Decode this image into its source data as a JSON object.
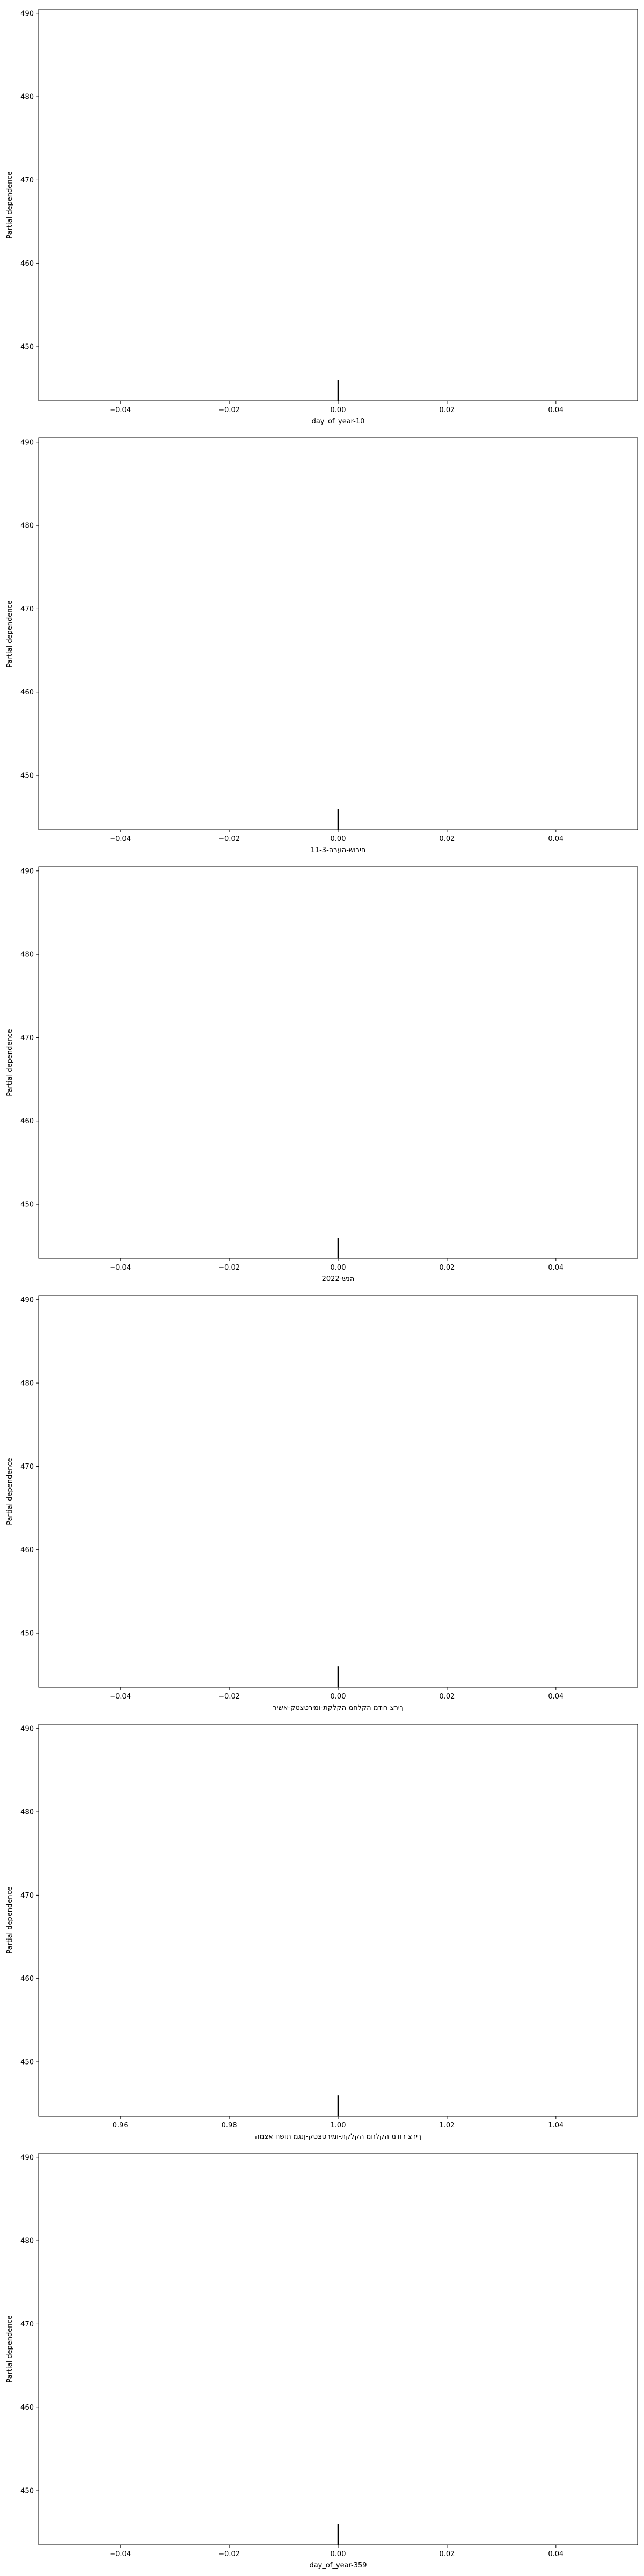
{
  "chart_data": [
    {
      "type": "line",
      "xlabel": "day_of_year-10",
      "ylabel": "Partial dependence",
      "xlim": [
        -0.055,
        0.055
      ],
      "ylim": [
        443.5,
        490.5
      ],
      "xticks": [
        -0.04,
        -0.02,
        0.0,
        0.02,
        0.04
      ],
      "xtick_labels": [
        "−0.04",
        "−0.02",
        "0.00",
        "0.02",
        "0.04"
      ],
      "yticks": [
        450,
        460,
        470,
        480,
        490
      ],
      "ytick_labels": [
        "450",
        "460",
        "470",
        "480",
        "490"
      ],
      "rug": [
        {
          "x": 0.0,
          "y0": 443.5,
          "y1": 446.0
        }
      ],
      "series": [],
      "grid": false
    },
    {
      "type": "line",
      "xlabel": "חירוש-הערה-11-3",
      "ylabel": "Partial dependence",
      "xlim": [
        -0.055,
        0.055
      ],
      "ylim": [
        443.5,
        490.5
      ],
      "xticks": [
        -0.04,
        -0.02,
        0.0,
        0.02,
        0.04
      ],
      "xtick_labels": [
        "−0.04",
        "−0.02",
        "0.00",
        "0.02",
        "0.04"
      ],
      "yticks": [
        450,
        460,
        470,
        480,
        490
      ],
      "ytick_labels": [
        "450",
        "460",
        "470",
        "480",
        "490"
      ],
      "rug": [
        {
          "x": 0.0,
          "y0": 443.5,
          "y1": 446.0
        }
      ],
      "series": [],
      "grid": false
    },
    {
      "type": "line",
      "xlabel": "הנש-2022",
      "ylabel": "Partial dependence",
      "xlim": [
        -0.055,
        0.055
      ],
      "ylim": [
        443.5,
        490.5
      ],
      "xticks": [
        -0.04,
        -0.02,
        0.0,
        0.02,
        0.04
      ],
      "xtick_labels": [
        "−0.04",
        "−0.02",
        "0.00",
        "0.02",
        "0.04"
      ],
      "yticks": [
        450,
        460,
        470,
        480,
        490
      ],
      "ytick_labels": [
        "450",
        "460",
        "470",
        "480",
        "490"
      ],
      "rug": [
        {
          "x": 0.0,
          "y0": 443.5,
          "y1": 446.0
        }
      ],
      "series": [],
      "grid": false
    },
    {
      "type": "line",
      "xlabel": "ךירצ רודמ הקלחמ הקלקת-ומירטצטק-אשיר",
      "ylabel": "Partial dependence",
      "xlim": [
        -0.055,
        0.055
      ],
      "ylim": [
        443.5,
        490.5
      ],
      "xticks": [
        -0.04,
        -0.02,
        0.0,
        0.02,
        0.04
      ],
      "xtick_labels": [
        "−0.04",
        "−0.02",
        "0.00",
        "0.02",
        "0.04"
      ],
      "yticks": [
        450,
        460,
        470,
        480,
        490
      ],
      "ytick_labels": [
        "450",
        "460",
        "470",
        "480",
        "490"
      ],
      "rug": [
        {
          "x": 0.0,
          "y0": 443.5,
          "y1": 446.0
        }
      ],
      "series": [],
      "grid": false
    },
    {
      "type": "line",
      "xlabel": "ךירצ רודמ הקלחמ הקלקת-ומירטצטק-ןנגמ תושח אצמה",
      "ylabel": "Partial dependence",
      "xlim": [
        0.945,
        1.055
      ],
      "ylim": [
        443.5,
        490.5
      ],
      "xticks": [
        0.96,
        0.98,
        1.0,
        1.02,
        1.04
      ],
      "xtick_labels": [
        "0.96",
        "0.98",
        "1.00",
        "1.02",
        "1.04"
      ],
      "yticks": [
        450,
        460,
        470,
        480,
        490
      ],
      "ytick_labels": [
        "450",
        "460",
        "470",
        "480",
        "490"
      ],
      "rug": [
        {
          "x": 1.0,
          "y0": 443.5,
          "y1": 446.0
        }
      ],
      "series": [],
      "grid": false
    },
    {
      "type": "line",
      "xlabel": "day_of_year-359",
      "ylabel": "Partial dependence",
      "xlim": [
        -0.055,
        0.055
      ],
      "ylim": [
        443.5,
        490.5
      ],
      "xticks": [
        -0.04,
        -0.02,
        0.0,
        0.02,
        0.04
      ],
      "xtick_labels": [
        "−0.04",
        "−0.02",
        "0.00",
        "0.02",
        "0.04"
      ],
      "yticks": [
        450,
        460,
        470,
        480,
        490
      ],
      "ytick_labels": [
        "450",
        "460",
        "470",
        "480",
        "490"
      ],
      "rug": [
        {
          "x": 0.0,
          "y0": 443.5,
          "y1": 446.0
        }
      ],
      "series": [],
      "grid": false
    }
  ],
  "colors": {
    "axes": "#000000",
    "rug": "#000000",
    "background": "#ffffff"
  }
}
